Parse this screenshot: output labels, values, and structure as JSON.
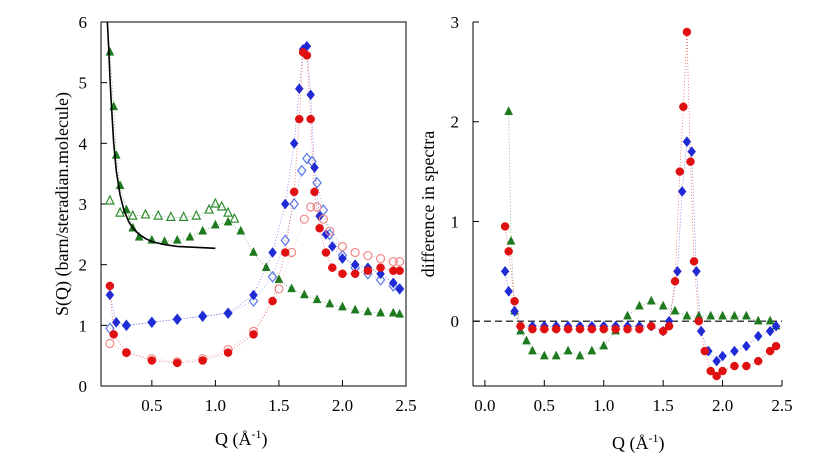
{
  "chart_data": [
    {
      "type": "scatter",
      "id": "left",
      "xlabel": "Q  (Å-1)",
      "xlabel_parts": [
        "Q  (Å",
        "-1",
        ")"
      ],
      "ylabel": "S(Q) (barn/steradian.molecule)",
      "xlim": [
        0.1,
        2.5
      ],
      "ylim": [
        0,
        6
      ],
      "xticks": [
        "0.5",
        "1.0",
        "1.5",
        "2.0",
        "2.5"
      ],
      "xtick_values": [
        0.5,
        1.0,
        1.5,
        2.0,
        2.5
      ],
      "yticks": [
        "0",
        "1",
        "2",
        "3",
        "4",
        "5",
        "6"
      ],
      "ytick_values": [
        0,
        1,
        2,
        3,
        4,
        5,
        6
      ],
      "series": [
        {
          "name": "green open triangles",
          "marker": "triangle-open",
          "color": "#2e8b2e",
          "x": [
            0.17,
            0.25,
            0.35,
            0.45,
            0.55,
            0.65,
            0.75,
            0.85,
            0.95,
            1.0,
            1.05,
            1.1,
            1.15
          ],
          "y": [
            3.05,
            2.85,
            2.8,
            2.82,
            2.8,
            2.78,
            2.78,
            2.8,
            2.9,
            3.0,
            2.95,
            2.85,
            2.75
          ]
        },
        {
          "name": "green filled triangles",
          "marker": "triangle",
          "color": "#1e7a1e",
          "x": [
            0.17,
            0.2,
            0.22,
            0.25,
            0.3,
            0.35,
            0.4,
            0.5,
            0.6,
            0.7,
            0.8,
            0.9,
            1.0,
            1.1,
            1.2,
            1.3,
            1.4,
            1.5,
            1.6,
            1.7,
            1.8,
            1.9,
            2.0,
            2.1,
            2.2,
            2.3,
            2.4,
            2.45
          ],
          "y": [
            5.5,
            4.6,
            3.8,
            3.3,
            2.9,
            2.6,
            2.45,
            2.4,
            2.38,
            2.4,
            2.45,
            2.55,
            2.65,
            2.7,
            2.55,
            2.2,
            1.95,
            1.75,
            1.6,
            1.5,
            1.42,
            1.35,
            1.3,
            1.25,
            1.22,
            1.2,
            1.2,
            1.18
          ]
        },
        {
          "name": "light blue open diamonds",
          "marker": "diamond-open",
          "color": "#5a78e6",
          "x": [
            0.17,
            0.3,
            0.5,
            0.7,
            0.9,
            1.1,
            1.3,
            1.45,
            1.55,
            1.62,
            1.68,
            1.72,
            1.76,
            1.8,
            1.85,
            1.9,
            2.0,
            2.1,
            2.2,
            2.3,
            2.4,
            2.45
          ],
          "y": [
            0.95,
            1.0,
            1.05,
            1.1,
            1.15,
            1.2,
            1.4,
            1.8,
            2.4,
            3.0,
            3.55,
            3.75,
            3.7,
            3.35,
            2.9,
            2.5,
            2.15,
            1.95,
            1.85,
            1.75,
            1.65,
            1.6
          ]
        },
        {
          "name": "blue filled diamonds",
          "marker": "diamond",
          "color": "#1f2bd6",
          "x": [
            0.17,
            0.22,
            0.3,
            0.5,
            0.7,
            0.9,
            1.1,
            1.3,
            1.45,
            1.55,
            1.62,
            1.66,
            1.69,
            1.72,
            1.75,
            1.78,
            1.82,
            1.87,
            1.92,
            2.0,
            2.1,
            2.2,
            2.3,
            2.4,
            2.45
          ],
          "y": [
            1.5,
            1.05,
            1.0,
            1.05,
            1.1,
            1.15,
            1.2,
            1.5,
            2.2,
            3.0,
            4.0,
            4.9,
            5.55,
            5.6,
            4.8,
            3.6,
            2.8,
            2.5,
            2.3,
            2.1,
            2.0,
            1.95,
            1.85,
            1.7,
            1.6
          ]
        },
        {
          "name": "pink open circles",
          "marker": "circle-open",
          "color": "#f08a8a",
          "x": [
            0.17,
            0.3,
            0.5,
            0.7,
            0.9,
            1.1,
            1.3,
            1.5,
            1.6,
            1.7,
            1.75,
            1.8,
            1.85,
            1.9,
            2.0,
            2.1,
            2.2,
            2.3,
            2.4,
            2.45
          ],
          "y": [
            0.7,
            0.55,
            0.45,
            0.4,
            0.45,
            0.6,
            0.9,
            1.6,
            2.2,
            2.75,
            2.95,
            2.95,
            2.75,
            2.55,
            2.3,
            2.2,
            2.15,
            2.1,
            2.05,
            2.05
          ]
        },
        {
          "name": "red filled circles",
          "marker": "circle",
          "color": "#e01010",
          "x": [
            0.17,
            0.2,
            0.3,
            0.5,
            0.7,
            0.9,
            1.1,
            1.3,
            1.45,
            1.55,
            1.62,
            1.66,
            1.69,
            1.72,
            1.75,
            1.78,
            1.82,
            1.87,
            1.92,
            2.0,
            2.1,
            2.2,
            2.3,
            2.4,
            2.45
          ],
          "y": [
            1.65,
            0.85,
            0.55,
            0.42,
            0.38,
            0.42,
            0.55,
            0.85,
            1.4,
            2.2,
            3.2,
            4.4,
            5.5,
            5.45,
            4.4,
            3.2,
            2.6,
            2.2,
            1.95,
            1.85,
            1.85,
            1.9,
            1.95,
            1.9,
            1.9
          ]
        },
        {
          "name": "fit curve",
          "marker": "line",
          "color": "#000000",
          "x": [
            0.15,
            0.16,
            0.17,
            0.18,
            0.2,
            0.22,
            0.25,
            0.28,
            0.32,
            0.36,
            0.4,
            0.45,
            0.5,
            0.6,
            0.7,
            0.8,
            0.9,
            1.0
          ],
          "y": [
            6.0,
            5.6,
            5.1,
            4.7,
            4.0,
            3.55,
            3.15,
            2.9,
            2.7,
            2.58,
            2.5,
            2.43,
            2.38,
            2.33,
            2.3,
            2.29,
            2.28,
            2.27
          ]
        }
      ]
    },
    {
      "type": "scatter",
      "id": "right",
      "xlabel": "Q  (Å-1)",
      "xlabel_parts": [
        "Q  (Å",
        "-1",
        ")"
      ],
      "ylabel": "difference in spectra",
      "xlim": [
        -0.1,
        2.5
      ],
      "ylim": [
        -0.65,
        3
      ],
      "xticks": [
        "0.0",
        "0.5",
        "1.0",
        "1.5",
        "2.0",
        "2.5"
      ],
      "xtick_values": [
        0.0,
        0.5,
        1.0,
        1.5,
        2.0,
        2.5
      ],
      "yticks": [
        "0",
        "1",
        "2",
        "3"
      ],
      "ytick_values": [
        0,
        1,
        2,
        3
      ],
      "zero_line": true,
      "series": [
        {
          "name": "green triangles",
          "marker": "triangle",
          "color": "#1e7a1e",
          "x": [
            0.2,
            0.22,
            0.25,
            0.3,
            0.35,
            0.4,
            0.5,
            0.6,
            0.7,
            0.8,
            0.9,
            1.0,
            1.1,
            1.2,
            1.3,
            1.4,
            1.5,
            1.6,
            1.7,
            1.8,
            1.9,
            2.0,
            2.1,
            2.2,
            2.3,
            2.4,
            2.45
          ],
          "y": [
            2.1,
            0.8,
            0.1,
            -0.1,
            -0.2,
            -0.3,
            -0.35,
            -0.35,
            -0.3,
            -0.35,
            -0.3,
            -0.25,
            -0.1,
            0.05,
            0.15,
            0.2,
            0.15,
            0.1,
            0.05,
            0.05,
            0.05,
            0.05,
            0.05,
            0.05,
            0.0,
            0.0,
            -0.05
          ]
        },
        {
          "name": "blue diamonds",
          "marker": "diamond",
          "color": "#1f2bd6",
          "x": [
            0.17,
            0.2,
            0.25,
            0.3,
            0.4,
            0.5,
            0.6,
            0.7,
            0.8,
            0.9,
            1.0,
            1.1,
            1.2,
            1.3,
            1.4,
            1.5,
            1.55,
            1.62,
            1.66,
            1.7,
            1.74,
            1.78,
            1.82,
            1.88,
            1.95,
            2.0,
            2.1,
            2.2,
            2.3,
            2.4,
            2.45
          ],
          "y": [
            0.5,
            0.3,
            0.1,
            -0.05,
            -0.05,
            -0.05,
            -0.05,
            -0.05,
            -0.05,
            -0.05,
            -0.05,
            -0.05,
            -0.05,
            -0.05,
            -0.05,
            -0.1,
            0.0,
            0.5,
            1.3,
            1.8,
            1.7,
            0.5,
            -0.1,
            -0.3,
            -0.4,
            -0.35,
            -0.3,
            -0.25,
            -0.15,
            -0.1,
            -0.05
          ]
        },
        {
          "name": "red circles",
          "marker": "circle",
          "color": "#e01010",
          "x": [
            0.17,
            0.2,
            0.25,
            0.3,
            0.4,
            0.5,
            0.6,
            0.7,
            0.8,
            0.9,
            1.0,
            1.1,
            1.2,
            1.3,
            1.4,
            1.5,
            1.55,
            1.6,
            1.64,
            1.67,
            1.7,
            1.73,
            1.76,
            1.8,
            1.85,
            1.9,
            1.95,
            2.0,
            2.1,
            2.2,
            2.3,
            2.4,
            2.45
          ],
          "y": [
            0.95,
            0.7,
            0.2,
            -0.05,
            -0.08,
            -0.08,
            -0.08,
            -0.08,
            -0.08,
            -0.08,
            -0.08,
            -0.08,
            -0.08,
            -0.08,
            -0.05,
            -0.1,
            -0.05,
            0.4,
            1.5,
            2.15,
            2.9,
            1.6,
            0.6,
            0.0,
            -0.3,
            -0.5,
            -0.55,
            -0.5,
            -0.45,
            -0.45,
            -0.4,
            -0.3,
            -0.25
          ]
        }
      ]
    }
  ]
}
